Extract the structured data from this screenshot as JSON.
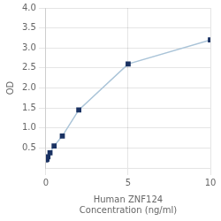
{
  "chart_data": {
    "type": "line",
    "x": [
      0,
      0.0625,
      0.125,
      0.25,
      0.5,
      1.0,
      2.0,
      5.0,
      10.0
    ],
    "values": [
      0.2,
      0.22,
      0.28,
      0.38,
      0.55,
      0.8,
      1.45,
      2.6,
      3.2
    ],
    "color": "#aac4d8",
    "colors": [
      "#1a3263",
      "#1a3263",
      "#1a3263",
      "#1a3263",
      "#1a3263",
      "#1a3263",
      "#1a3263",
      "#1a3263",
      "#1a3263"
    ],
    "marker": "square",
    "xlabel": [
      "Human ZNF124",
      "Concentration (ng/ml)"
    ],
    "ylabel": "OD",
    "xlim": [
      0,
      10
    ],
    "ylim": [
      0,
      4
    ],
    "xticks": [
      0,
      5,
      10
    ],
    "yticks": [
      0.5,
      {
        "value": 1,
        "label": "1.0"
      },
      1.5,
      {
        "value": 2,
        "label": "2.0"
      },
      2.5,
      {
        "value": 3,
        "label": "3.0"
      },
      3.5,
      {
        "value": 4,
        "label": "4.0"
      }
    ],
    "grid": true
  }
}
